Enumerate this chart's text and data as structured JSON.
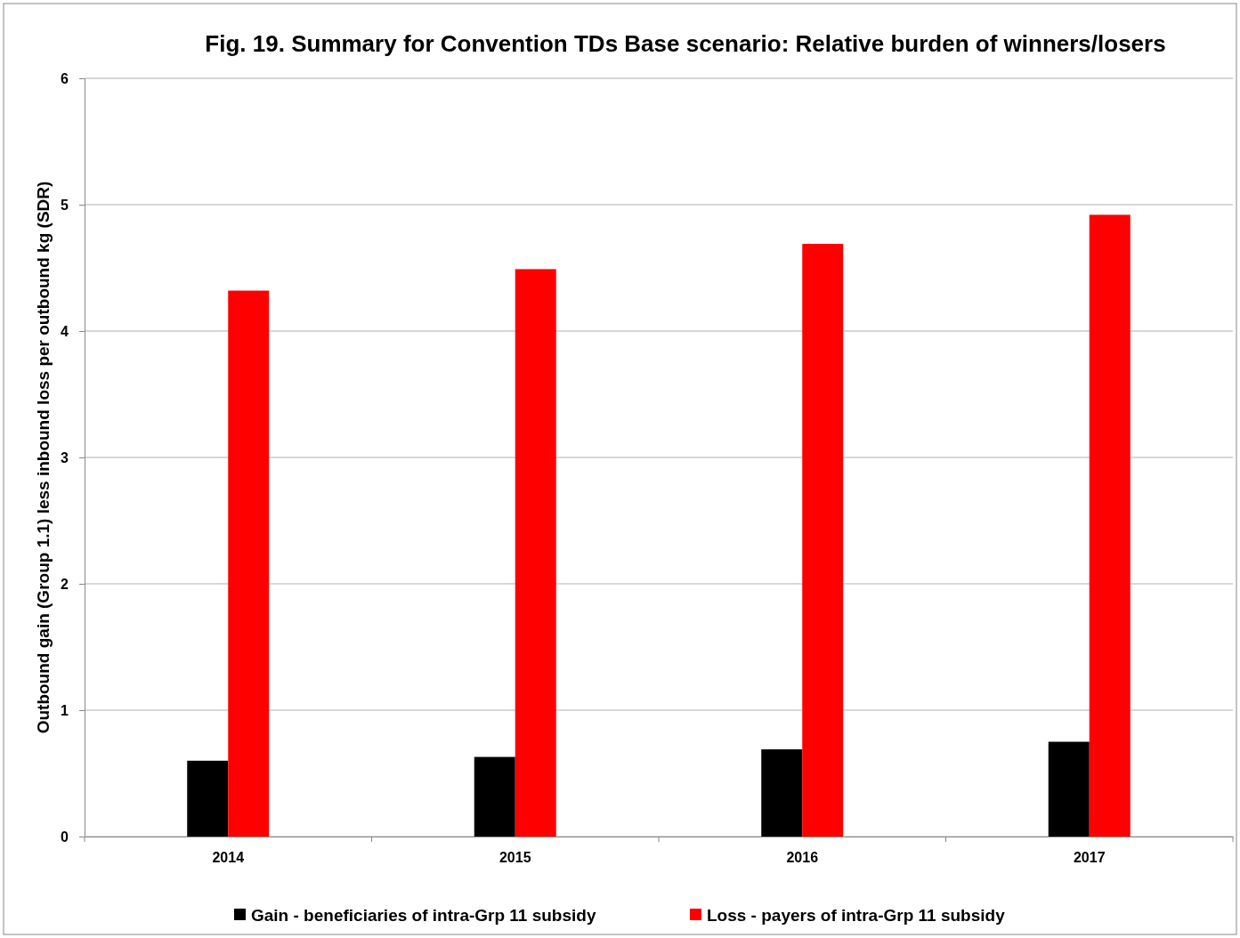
{
  "chart_data": {
    "type": "bar",
    "title": "Fig. 19. Summary for Convention TDs Base scenario: Relative burden of winners/losers",
    "ylabel": "Outbound gain (Group 1.1) less inbound loss per outbound kg (SDR)",
    "categories": [
      "2014",
      "2015",
      "2016",
      "2017"
    ],
    "series": [
      {
        "name": "Gain - beneficiaries of intra-Grp 11 subsidy",
        "color": "#000000",
        "values": [
          0.6,
          0.63,
          0.69,
          0.75
        ]
      },
      {
        "name": "Loss - payers of intra-Grp 11 subsidy",
        "color": "#ff0000",
        "values": [
          4.32,
          4.49,
          4.69,
          4.92
        ]
      }
    ],
    "ylim": [
      0,
      6
    ],
    "yticks": [
      0,
      1,
      2,
      3,
      4,
      5,
      6
    ],
    "grid": "y",
    "legend": "bottom"
  }
}
